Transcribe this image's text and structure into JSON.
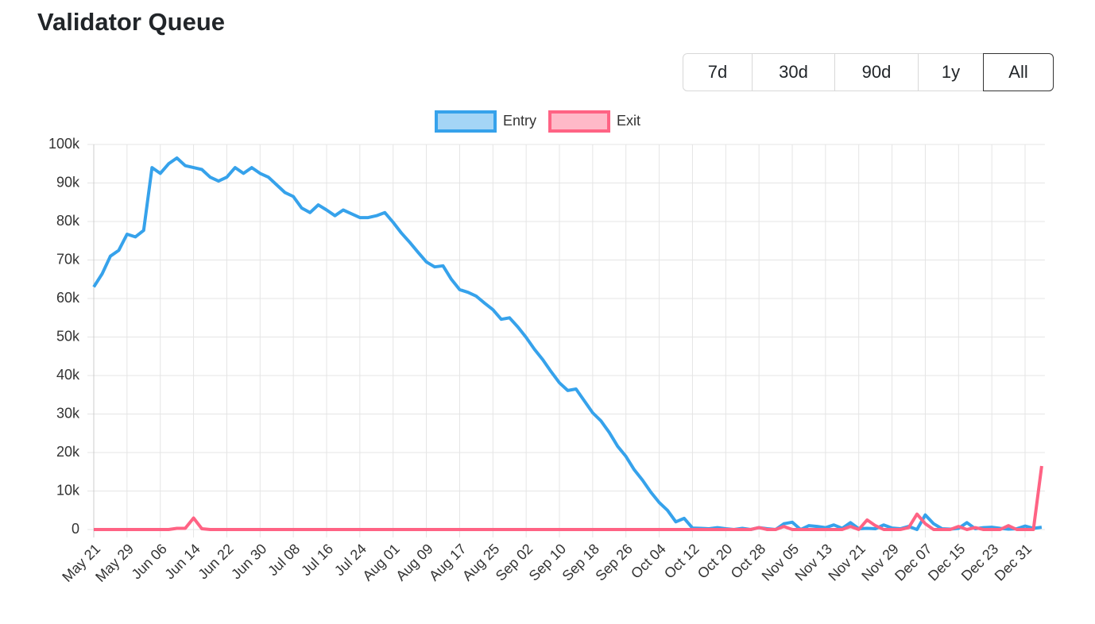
{
  "header": {
    "title": "Validator Queue"
  },
  "buttons": [
    "7d",
    "30d",
    "90d",
    "1y",
    "All"
  ],
  "chart_data": {
    "type": "line",
    "categories": [
      "May 21",
      null,
      null,
      null,
      "May 29",
      null,
      null,
      null,
      "Jun 06",
      null,
      null,
      null,
      "Jun 14",
      null,
      null,
      null,
      "Jun 22",
      null,
      null,
      null,
      "Jun 30",
      null,
      null,
      null,
      "Jul 08",
      null,
      null,
      null,
      "Jul 16",
      null,
      null,
      null,
      "Jul 24",
      null,
      null,
      null,
      "Aug 01",
      null,
      null,
      null,
      "Aug 09",
      null,
      null,
      null,
      "Aug 17",
      null,
      null,
      null,
      "Aug 25",
      null,
      null,
      null,
      "Sep 02",
      null,
      null,
      null,
      "Sep 10",
      null,
      null,
      null,
      "Sep 18",
      null,
      null,
      null,
      "Sep 26",
      null,
      null,
      null,
      "Oct 04",
      null,
      null,
      null,
      "Oct 12",
      null,
      null,
      null,
      "Oct 20",
      null,
      null,
      null,
      "Oct 28",
      null,
      null,
      null,
      "Nov 05",
      null,
      null,
      null,
      "Nov 13",
      null,
      null,
      null,
      "Nov 21",
      null,
      null,
      null,
      "Nov 29",
      null,
      null,
      null,
      "Dec 07",
      null,
      null,
      null,
      "Dec 15",
      null,
      null,
      null,
      "Dec 23",
      null,
      null,
      null,
      "Dec 31",
      null,
      null
    ],
    "series": [
      {
        "name": "Entry",
        "color": "#36a2eb",
        "values": [
          63000,
          66400,
          71000,
          72500,
          76700,
          76000,
          77700,
          94000,
          92500,
          95000,
          96500,
          94500,
          94000,
          93500,
          91500,
          90500,
          91500,
          94000,
          92500,
          94000,
          92500,
          91500,
          89500,
          87500,
          86500,
          83500,
          82300,
          84300,
          83000,
          81500,
          83000,
          82000,
          81000,
          81000,
          81500,
          82300,
          79800,
          77000,
          74600,
          72000,
          69500,
          68200,
          68500,
          65000,
          62300,
          61600,
          60600,
          58800,
          57100,
          54600,
          55000,
          52600,
          49900,
          46800,
          44100,
          41000,
          38100,
          36100,
          36500,
          33400,
          30300,
          28200,
          25200,
          21600,
          19000,
          15500,
          12800,
          9700,
          7000,
          5000,
          2000,
          2900,
          400,
          300,
          200,
          500,
          200,
          0,
          300,
          0,
          500,
          200,
          0,
          1500,
          1900,
          0,
          1000,
          800,
          500,
          1200,
          300,
          1800,
          200,
          300,
          200,
          1200,
          400,
          200,
          800,
          0,
          3800,
          1500,
          200,
          100,
          300,
          1800,
          200,
          500,
          600,
          300,
          100,
          200,
          900,
          300,
          600
        ]
      },
      {
        "name": "Exit",
        "color": "#ff6384",
        "values": [
          0,
          0,
          0,
          0,
          0,
          0,
          0,
          0,
          0,
          0,
          300,
          300,
          3000,
          200,
          0,
          0,
          0,
          0,
          0,
          0,
          0,
          0,
          0,
          0,
          0,
          0,
          0,
          0,
          0,
          0,
          0,
          0,
          0,
          0,
          0,
          0,
          0,
          0,
          0,
          0,
          0,
          0,
          0,
          0,
          0,
          0,
          0,
          0,
          0,
          0,
          0,
          0,
          0,
          0,
          0,
          0,
          0,
          0,
          0,
          0,
          0,
          0,
          0,
          0,
          0,
          0,
          0,
          0,
          0,
          0,
          0,
          0,
          0,
          0,
          0,
          0,
          0,
          0,
          0,
          0,
          500,
          0,
          0,
          800,
          0,
          0,
          0,
          0,
          0,
          0,
          0,
          800,
          0,
          2500,
          1000,
          0,
          0,
          0,
          500,
          4000,
          1500,
          0,
          0,
          0,
          800,
          0,
          500,
          0,
          0,
          0,
          1000,
          0,
          0,
          0,
          16500
        ]
      }
    ],
    "ylim": [
      0,
      100000
    ],
    "yticks": [
      0,
      {
        "value": 10000,
        "label": "10k"
      },
      {
        "value": 20000,
        "label": "20k"
      },
      {
        "value": 30000,
        "label": "30k"
      },
      {
        "value": 40000,
        "label": "40k"
      },
      {
        "value": 50000,
        "label": "50k"
      },
      {
        "value": 60000,
        "label": "60k"
      },
      {
        "value": 70000,
        "label": "70k"
      },
      {
        "value": 80000,
        "label": "80k"
      },
      {
        "value": 90000,
        "label": "90k"
      },
      {
        "value": 100000,
        "label": "100k"
      }
    ],
    "grid": true,
    "legend": "top"
  }
}
